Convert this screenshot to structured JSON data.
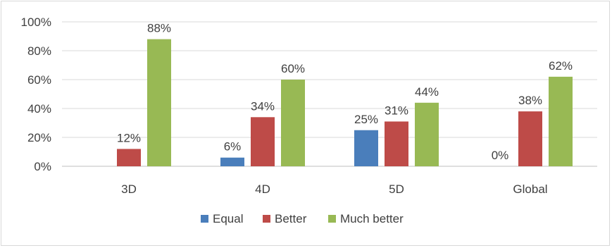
{
  "chart_data": {
    "type": "bar",
    "title": "",
    "xlabel": "",
    "ylabel": "",
    "categories": [
      "3D",
      "4D",
      "5D",
      "Global"
    ],
    "series": [
      {
        "name": "Equal",
        "color": "#4a7ebb",
        "values": [
          null,
          6,
          25,
          0
        ],
        "labels": [
          "",
          "6%",
          "25%",
          "0%"
        ]
      },
      {
        "name": "Better",
        "color": "#be4b48",
        "values": [
          12,
          34,
          31,
          38
        ],
        "labels": [
          "12%",
          "34%",
          "31%",
          "38%"
        ]
      },
      {
        "name": "Much better",
        "color": "#98b954",
        "values": [
          88,
          60,
          44,
          62
        ],
        "labels": [
          "88%",
          "60%",
          "44%",
          "62%"
        ]
      }
    ],
    "ylim": [
      0,
      100
    ],
    "yticks": [
      0,
      20,
      40,
      60,
      80,
      100
    ],
    "ytick_labels": [
      "0%",
      "20%",
      "40%",
      "60%",
      "80%",
      "100%"
    ],
    "grid": true,
    "legend_position": "bottom"
  }
}
